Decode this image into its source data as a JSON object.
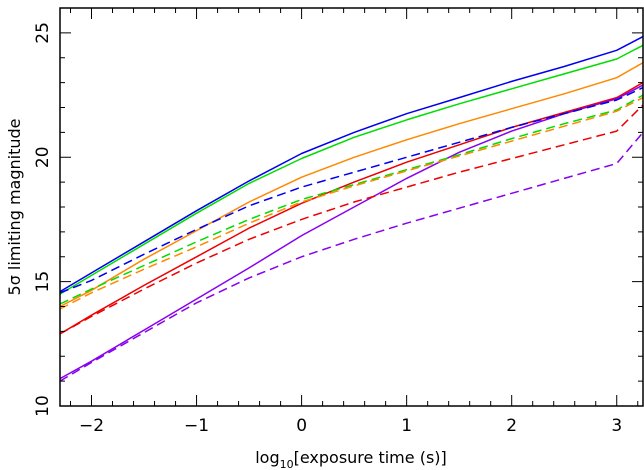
{
  "chart_data": {
    "type": "line",
    "title": "",
    "xlabel_parts": [
      "log",
      "10",
      "[exposure time (s)]"
    ],
    "ylabel": "5σ limiting magnitude",
    "xlim": [
      -2.3,
      3.25
    ],
    "ylim": [
      10,
      26
    ],
    "x_ticks": [
      -2,
      -1,
      0,
      1,
      2,
      3
    ],
    "x_tick_labels": [
      "−2",
      "−1",
      "0",
      "1",
      "2",
      "3"
    ],
    "y_ticks": [
      10,
      15,
      20,
      25
    ],
    "y_tick_labels": [
      "10",
      "15",
      "20",
      "25"
    ],
    "x_minor_step": 0.2,
    "y_minor_step": 1,
    "grid": false,
    "legend": "none",
    "x": [
      -2.3,
      -2,
      -1.5,
      -1,
      -0.5,
      0,
      0.5,
      1,
      1.5,
      2,
      2.5,
      3,
      3.25
    ],
    "series": [
      {
        "color": "#0000ee",
        "style": "solid",
        "values": [
          14.6,
          15.35,
          16.6,
          17.85,
          19.05,
          20.15,
          21.0,
          21.75,
          22.4,
          23.05,
          23.65,
          24.3,
          24.85
        ]
      },
      {
        "color": "#00dd00",
        "style": "solid",
        "values": [
          14.5,
          15.25,
          16.5,
          17.75,
          18.95,
          19.95,
          20.8,
          21.5,
          22.15,
          22.75,
          23.35,
          23.95,
          24.5
        ]
      },
      {
        "color": "#ff8800",
        "style": "solid",
        "values": [
          14.0,
          14.65,
          15.9,
          17.05,
          18.2,
          19.2,
          20.0,
          20.7,
          21.35,
          21.95,
          22.55,
          23.2,
          23.8
        ]
      },
      {
        "color": "#ee0000",
        "style": "solid",
        "values": [
          12.9,
          13.65,
          14.85,
          16.0,
          17.15,
          18.15,
          19.0,
          19.8,
          20.5,
          21.2,
          21.8,
          22.4,
          23.0
        ]
      },
      {
        "color": "#8800ee",
        "style": "solid",
        "values": [
          11.1,
          11.8,
          13.05,
          14.3,
          15.55,
          16.85,
          18.0,
          19.15,
          20.2,
          21.05,
          21.75,
          22.35,
          22.9
        ]
      },
      {
        "color": "#0000ee",
        "style": "dashed",
        "values": [
          14.55,
          15.05,
          16.1,
          17.1,
          18.05,
          18.8,
          19.4,
          20.0,
          20.6,
          21.2,
          21.75,
          22.3,
          22.8
        ]
      },
      {
        "color": "#00dd00",
        "style": "dashed",
        "values": [
          14.1,
          14.7,
          15.65,
          16.6,
          17.5,
          18.3,
          18.9,
          19.5,
          20.1,
          20.75,
          21.35,
          21.9,
          22.5
        ]
      },
      {
        "color": "#ff8800",
        "style": "dashed",
        "values": [
          13.9,
          14.55,
          15.5,
          16.4,
          17.35,
          18.2,
          18.85,
          19.45,
          20.05,
          20.65,
          21.25,
          21.85,
          22.4
        ]
      },
      {
        "color": "#ee0000",
        "style": "dashed",
        "values": [
          12.9,
          13.6,
          14.7,
          15.75,
          16.7,
          17.5,
          18.2,
          18.8,
          19.4,
          19.95,
          20.5,
          21.05,
          22.1
        ]
      },
      {
        "color": "#8800ee",
        "style": "dashed",
        "values": [
          11.0,
          11.75,
          12.95,
          14.15,
          15.15,
          16.0,
          16.7,
          17.35,
          17.95,
          18.55,
          19.15,
          19.75,
          21.0
        ]
      }
    ]
  }
}
